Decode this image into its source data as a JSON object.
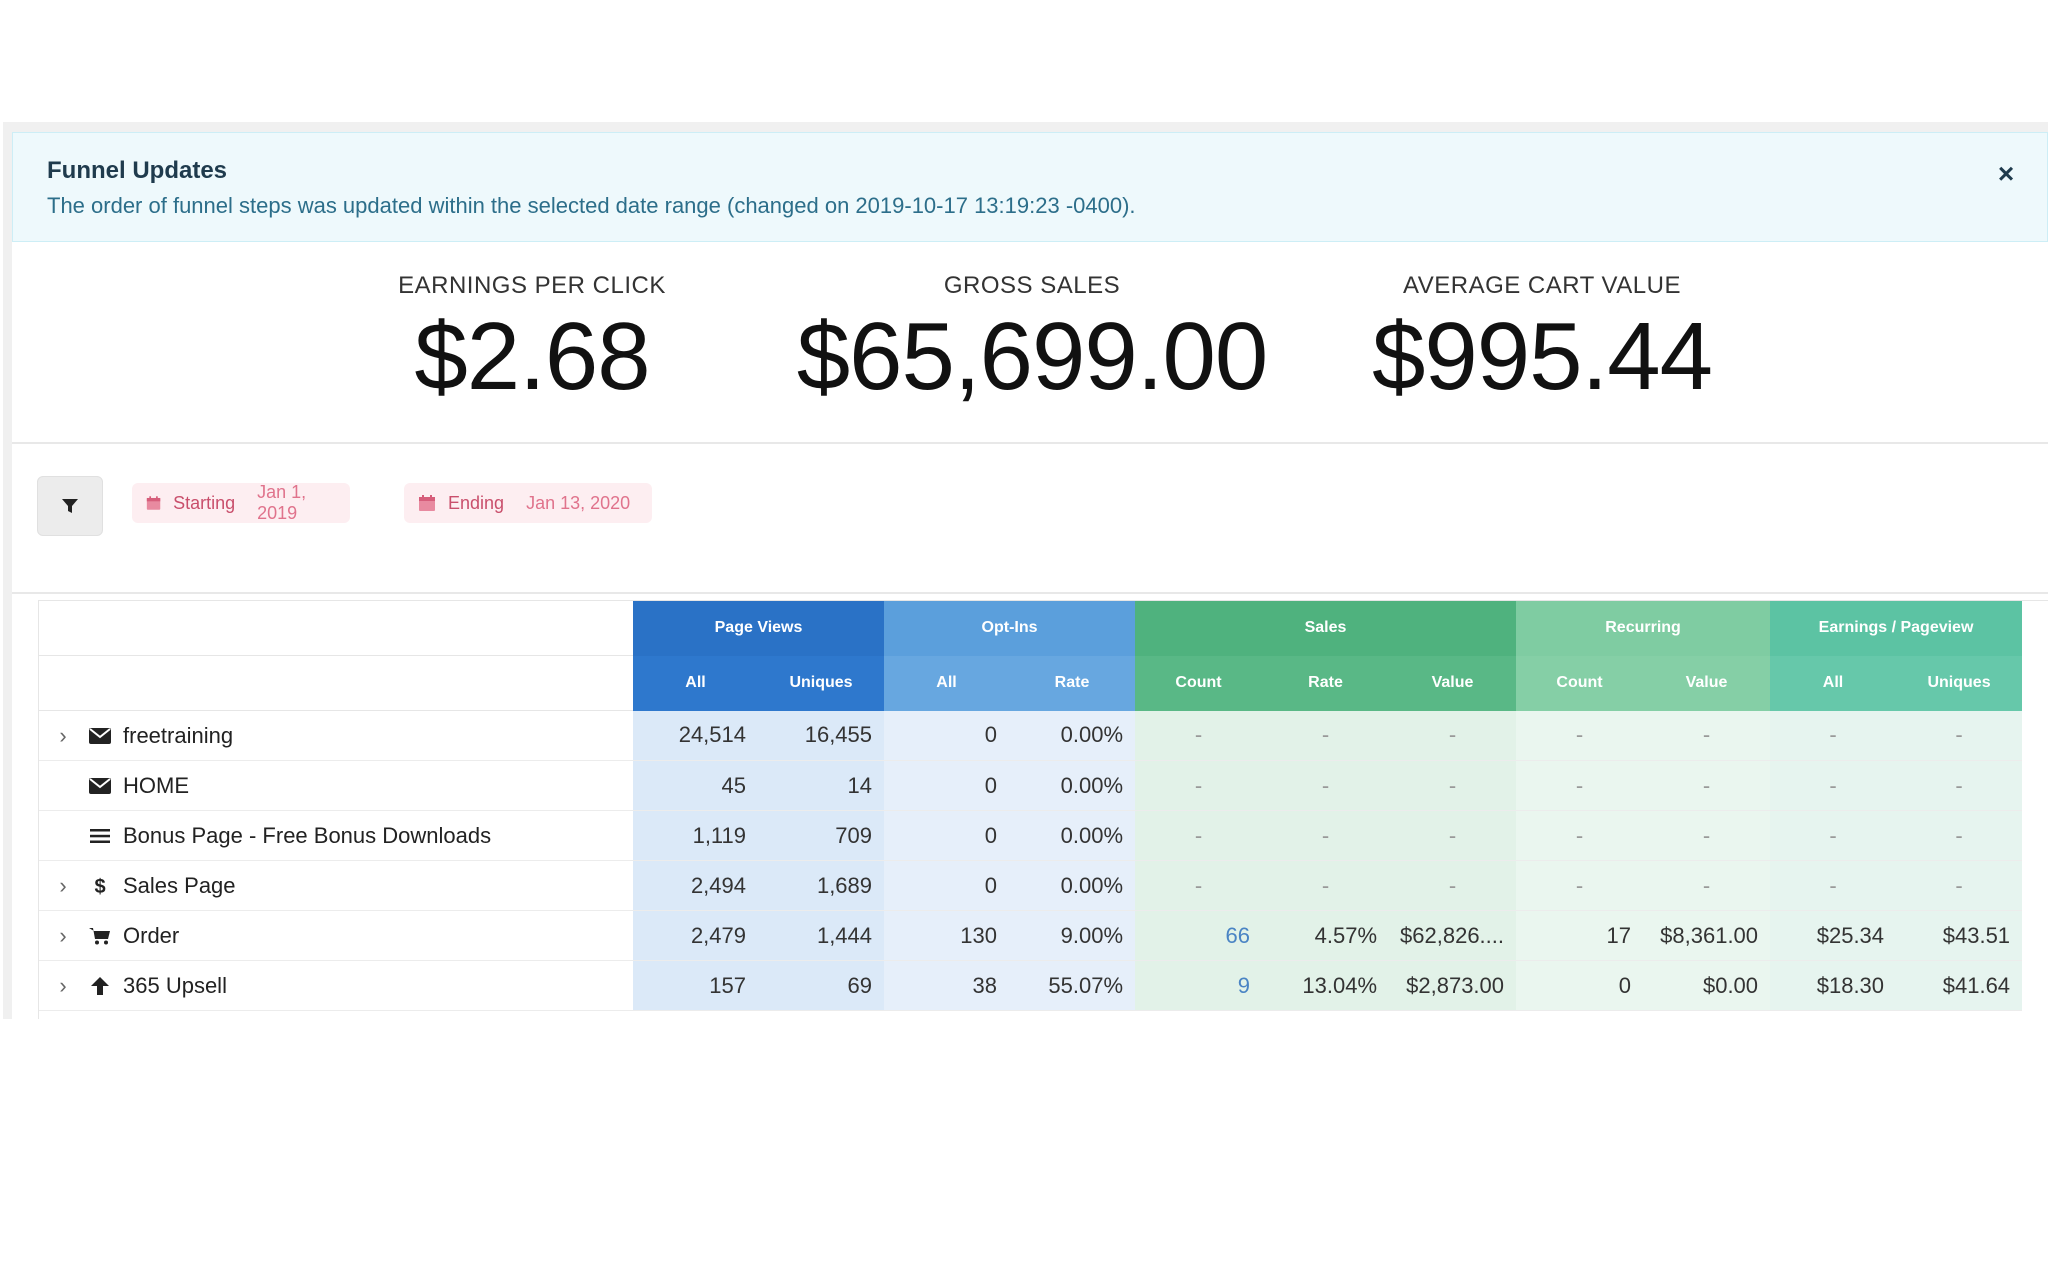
{
  "alert": {
    "title": "Funnel Updates",
    "text": "The order of funnel steps was updated within the selected date range (changed on 2019-10-17 13:19:23 -0400).",
    "close_icon": "close-icon"
  },
  "stats": [
    {
      "label": "EARNINGS PER CLICK",
      "value": "$2.68"
    },
    {
      "label": "GROSS SALES",
      "value": "$65,699.00"
    },
    {
      "label": "AVERAGE CART VALUE",
      "value": "$995.44"
    }
  ],
  "filters": {
    "filter_icon": "filter-icon",
    "starting_label": "Starting",
    "starting_value": "Jan 1, 2019",
    "ending_label": "Ending",
    "ending_value": "Jan 13, 2020"
  },
  "table": {
    "groups": [
      "Page Views",
      "Opt-Ins",
      "Sales",
      "Recurring",
      "Earnings / Pageview"
    ],
    "columns": [
      "All",
      "Uniques",
      "All",
      "Rate",
      "Count",
      "Rate",
      "Value",
      "Count",
      "Value",
      "All",
      "Uniques"
    ],
    "rows": [
      {
        "name": "freetraining",
        "icon": "envelope-icon",
        "expandable": true,
        "cells": [
          "24,514",
          "16,455",
          "0",
          "0.00%",
          "-",
          "-",
          "-",
          "-",
          "-",
          "-",
          "-"
        ]
      },
      {
        "name": "HOME",
        "icon": "envelope-icon",
        "expandable": false,
        "cells": [
          "45",
          "14",
          "0",
          "0.00%",
          "-",
          "-",
          "-",
          "-",
          "-",
          "-",
          "-"
        ]
      },
      {
        "name": "Bonus Page - Free Bonus Downloads",
        "icon": "list-icon",
        "expandable": false,
        "cells": [
          "1,119",
          "709",
          "0",
          "0.00%",
          "-",
          "-",
          "-",
          "-",
          "-",
          "-",
          "-"
        ]
      },
      {
        "name": "Sales Page",
        "icon": "dollar-icon",
        "expandable": true,
        "cells": [
          "2,494",
          "1,689",
          "0",
          "0.00%",
          "-",
          "-",
          "-",
          "-",
          "-",
          "-",
          "-"
        ]
      },
      {
        "name": "Order",
        "icon": "cart-icon",
        "expandable": true,
        "cells": [
          "2,479",
          "1,444",
          "130",
          "9.00%",
          "66",
          "4.57%",
          "$62,826....",
          "17",
          "$8,361.00",
          "$25.34",
          "$43.51"
        ]
      },
      {
        "name": "365 Upsell",
        "icon": "arrow-up-icon",
        "expandable": true,
        "cells": [
          "157",
          "69",
          "38",
          "55.07%",
          "9",
          "13.04%",
          "$2,873.00",
          "0",
          "$0.00",
          "$18.30",
          "$41.64"
        ]
      }
    ]
  }
}
